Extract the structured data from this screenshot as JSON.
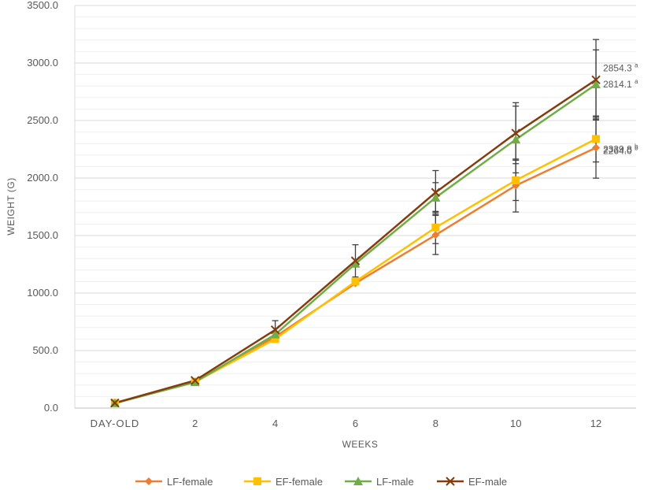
{
  "chart_data": {
    "type": "line",
    "xlabel": "WEEKS",
    "ylabel": "WEIGHT (G)",
    "categories": [
      "DAY-OLD",
      "2",
      "4",
      "6",
      "8",
      "10",
      "12"
    ],
    "ylim": [
      0,
      3500
    ],
    "yticks": [
      "0.0",
      "500.0",
      "1000.0",
      "1500.0",
      "2000.0",
      "2500.0",
      "3000.0",
      "3500.0"
    ],
    "grid": true,
    "legend_position": "bottom",
    "series": [
      {
        "name": "LF-female",
        "color": "#ED7D31",
        "marker": "diamond",
        "values": [
          42,
          230,
          620,
          1085,
          1505,
          1935,
          2264.0
        ],
        "errors": [
          null,
          null,
          null,
          null,
          170,
          230,
          265
        ]
      },
      {
        "name": "EF-female",
        "color": "#FFC000",
        "marker": "square",
        "values": [
          45,
          228,
          600,
          1100,
          1570,
          1980,
          2339.8
        ],
        "errors": [
          null,
          null,
          null,
          null,
          140,
          175,
          200
        ]
      },
      {
        "name": "LF-male",
        "color": "#70AD47",
        "marker": "triangle",
        "values": [
          43,
          225,
          640,
          1255,
          1830,
          2335,
          2814.1
        ],
        "errors": [
          null,
          null,
          null,
          null,
          130,
          290,
          300
        ]
      },
      {
        "name": "EF-male",
        "color": "#843C0C",
        "marker": "x",
        "values": [
          44,
          240,
          680,
          1280,
          1875,
          2390,
          2854.3
        ],
        "errors": [
          null,
          null,
          80,
          140,
          190,
          265,
          350
        ]
      }
    ],
    "annotations": [
      {
        "text": "2854.3",
        "sup": "a",
        "series": "EF-male"
      },
      {
        "text": "2814.1",
        "sup": "a",
        "series": "LF-male"
      },
      {
        "text": "2339.8",
        "sup": "b",
        "series": "EF-female"
      },
      {
        "text": "2264.0",
        "sup": "b",
        "series": "LF-female"
      }
    ]
  }
}
